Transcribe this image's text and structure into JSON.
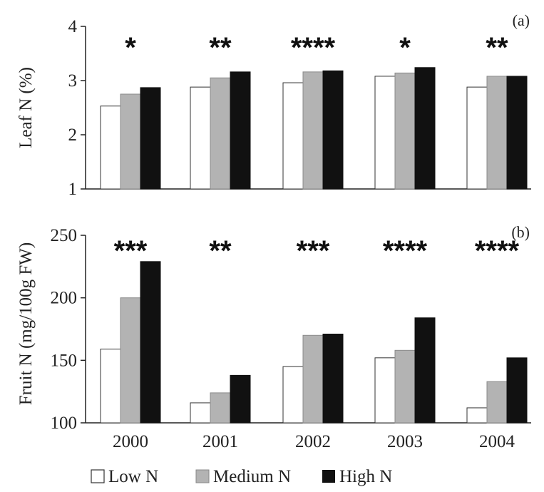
{
  "chart_data": [
    {
      "type": "bar",
      "panel_label": "(a)",
      "ylabel": "Leaf N (%)",
      "categories": [
        "2000",
        "2001",
        "2002",
        "2003",
        "2004"
      ],
      "ylim": [
        1,
        4
      ],
      "yticks": [
        "1",
        "2",
        "3",
        "4"
      ],
      "significance": [
        "*",
        "**",
        "****",
        "*",
        "**"
      ],
      "series": [
        {
          "name": "Low N",
          "values": [
            2.53,
            2.88,
            2.96,
            3.08,
            2.88
          ]
        },
        {
          "name": "Medium N",
          "values": [
            2.75,
            3.05,
            3.16,
            3.14,
            3.08
          ]
        },
        {
          "name": "High N",
          "values": [
            2.87,
            3.16,
            3.18,
            3.24,
            3.08
          ]
        }
      ]
    },
    {
      "type": "bar",
      "panel_label": "(b)",
      "ylabel": "Fruit N (mg/100g FW)",
      "categories": [
        "2000",
        "2001",
        "2002",
        "2003",
        "2004"
      ],
      "ylim": [
        100,
        250
      ],
      "yticks": [
        "100",
        "150",
        "200",
        "250"
      ],
      "significance": [
        "***",
        "**",
        "***",
        "****",
        "****"
      ],
      "series": [
        {
          "name": "Low N",
          "values": [
            159,
            116,
            145,
            152,
            112
          ]
        },
        {
          "name": "Medium N",
          "values": [
            200,
            124,
            170,
            158,
            133
          ]
        },
        {
          "name": "High N",
          "values": [
            229,
            138,
            171,
            184,
            152
          ]
        }
      ]
    }
  ],
  "legend": [
    {
      "label": "Low N",
      "color": "#ffffff"
    },
    {
      "label": "Medium N",
      "color": "#b3b3b3"
    },
    {
      "label": "High N",
      "color": "#111111"
    }
  ]
}
